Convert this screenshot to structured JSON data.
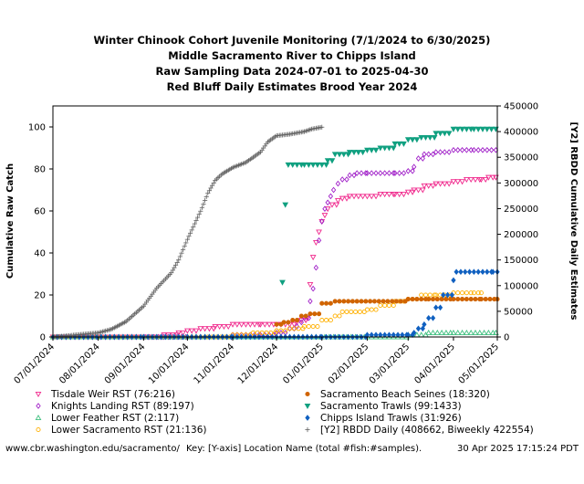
{
  "chart_data": {
    "type": "scatter",
    "title_lines": [
      "Winter Chinook Cohort Juvenile Monitoring (7/1/2024 to 6/30/2025)",
      "Middle Sacramento River to Chipps Island",
      "Raw Sampling Data 2024-07-01 to 2025-04-30",
      "Red Bluff Daily Estimates Brood Year 2024"
    ],
    "ylabel": "Cumulative Raw Catch",
    "y2label": "[Y2] RBDD Cumulative Daily Estimates",
    "xlim": [
      "2024-07-01",
      "2025-05-01"
    ],
    "x_ticks": [
      "07/01/2024",
      "08/01/2024",
      "09/01/2024",
      "10/01/2024",
      "11/01/2024",
      "12/01/2024",
      "01/01/2025",
      "02/01/2025",
      "03/01/2025",
      "04/01/2025",
      "05/01/2025"
    ],
    "ylim": [
      0,
      110
    ],
    "y_ticks": [
      "0",
      "20",
      "40",
      "60",
      "80",
      "100"
    ],
    "y2lim": [
      0,
      450000
    ],
    "y2_ticks": [
      "0",
      "50000",
      "100000",
      "150000",
      "200000",
      "250000",
      "300000",
      "350000",
      "400000",
      "450000"
    ],
    "grid": false,
    "series": [
      {
        "name": "Tisdale Weir RST (76:216)",
        "color": "#f0288c",
        "marker": "tri-down-open",
        "axis": "y",
        "points": [
          [
            "2024-07-01",
            0
          ],
          [
            "2024-08-15",
            0
          ],
          [
            "2024-09-01",
            0
          ],
          [
            "2024-09-15",
            1
          ],
          [
            "2024-09-25",
            2
          ],
          [
            "2024-10-01",
            3
          ],
          [
            "2024-10-10",
            4
          ],
          [
            "2024-10-20",
            5
          ],
          [
            "2024-11-01",
            6
          ],
          [
            "2024-11-20",
            6
          ],
          [
            "2024-12-01",
            6
          ],
          [
            "2024-12-10",
            6
          ],
          [
            "2024-12-15",
            7
          ],
          [
            "2024-12-18",
            8
          ],
          [
            "2024-12-22",
            9
          ],
          [
            "2024-12-24",
            25
          ],
          [
            "2024-12-26",
            38
          ],
          [
            "2024-12-28",
            45
          ],
          [
            "2024-12-30",
            50
          ],
          [
            "2025-01-01",
            55
          ],
          [
            "2025-01-03",
            58
          ],
          [
            "2025-01-05",
            61
          ],
          [
            "2025-01-08",
            63
          ],
          [
            "2025-01-12",
            65
          ],
          [
            "2025-01-15",
            66
          ],
          [
            "2025-01-20",
            67
          ],
          [
            "2025-02-01",
            67
          ],
          [
            "2025-02-10",
            68
          ],
          [
            "2025-02-20",
            68
          ],
          [
            "2025-03-01",
            69
          ],
          [
            "2025-03-05",
            70
          ],
          [
            "2025-03-12",
            72
          ],
          [
            "2025-03-20",
            73
          ],
          [
            "2025-04-01",
            74
          ],
          [
            "2025-04-10",
            75
          ],
          [
            "2025-04-20",
            75
          ],
          [
            "2025-04-25",
            76
          ],
          [
            "2025-04-30",
            76
          ]
        ]
      },
      {
        "name": "Knights Landing RST (89:197)",
        "color": "#a020c8",
        "marker": "diamond-open",
        "axis": "y",
        "points": [
          [
            "2024-07-01",
            0
          ],
          [
            "2024-09-15",
            0
          ],
          [
            "2024-10-01",
            0
          ],
          [
            "2024-11-01",
            1
          ],
          [
            "2024-11-20",
            1
          ],
          [
            "2024-12-01",
            2
          ],
          [
            "2024-12-10",
            4
          ],
          [
            "2024-12-15",
            5
          ],
          [
            "2024-12-18",
            7
          ],
          [
            "2024-12-20",
            9
          ],
          [
            "2024-12-24",
            17
          ],
          [
            "2024-12-26",
            23
          ],
          [
            "2024-12-28",
            33
          ],
          [
            "2024-12-30",
            46
          ],
          [
            "2025-01-01",
            55
          ],
          [
            "2025-01-03",
            61
          ],
          [
            "2025-01-05",
            64
          ],
          [
            "2025-01-07",
            67
          ],
          [
            "2025-01-09",
            70
          ],
          [
            "2025-01-12",
            73
          ],
          [
            "2025-01-15",
            75
          ],
          [
            "2025-01-20",
            77
          ],
          [
            "2025-01-25",
            78
          ],
          [
            "2025-02-01",
            78
          ],
          [
            "2025-02-10",
            78
          ],
          [
            "2025-02-20",
            78
          ],
          [
            "2025-03-01",
            79
          ],
          [
            "2025-03-05",
            81
          ],
          [
            "2025-03-08",
            85
          ],
          [
            "2025-03-12",
            87
          ],
          [
            "2025-03-20",
            88
          ],
          [
            "2025-04-01",
            89
          ],
          [
            "2025-04-15",
            89
          ],
          [
            "2025-04-30",
            89
          ]
        ]
      },
      {
        "name": "Lower Feather RST (2:117)",
        "color": "#40c080",
        "marker": "tri-up-open",
        "axis": "y",
        "points": [
          [
            "2024-07-01",
            0
          ],
          [
            "2024-09-01",
            0
          ],
          [
            "2024-11-01",
            0
          ],
          [
            "2024-12-01",
            0
          ],
          [
            "2025-01-15",
            0
          ],
          [
            "2025-02-01",
            0
          ],
          [
            "2025-03-01",
            1
          ],
          [
            "2025-03-15",
            2
          ],
          [
            "2025-04-01",
            2
          ],
          [
            "2025-04-30",
            2
          ]
        ]
      },
      {
        "name": "Lower Sacramento RST (21:136)",
        "color": "#ffb000",
        "marker": "circle-open",
        "axis": "y",
        "points": [
          [
            "2024-07-01",
            0
          ],
          [
            "2024-09-01",
            0
          ],
          [
            "2024-10-15",
            0
          ],
          [
            "2024-11-01",
            1
          ],
          [
            "2024-11-15",
            2
          ],
          [
            "2024-12-01",
            3
          ],
          [
            "2024-12-10",
            4
          ],
          [
            "2024-12-20",
            5
          ],
          [
            "2025-01-01",
            8
          ],
          [
            "2025-01-10",
            10
          ],
          [
            "2025-01-15",
            12
          ],
          [
            "2025-02-01",
            13
          ],
          [
            "2025-02-10",
            15
          ],
          [
            "2025-02-20",
            17
          ],
          [
            "2025-03-01",
            18
          ],
          [
            "2025-03-10",
            20
          ],
          [
            "2025-03-20",
            20
          ],
          [
            "2025-04-01",
            21
          ],
          [
            "2025-04-15",
            21
          ],
          [
            "2025-04-20",
            21
          ]
        ]
      },
      {
        "name": "Sacramento Beach Seines (18:320)",
        "color": "#d06400",
        "marker": "circle-filled",
        "axis": "y",
        "points": [
          [
            "2024-12-01",
            6
          ],
          [
            "2024-12-06",
            7
          ],
          [
            "2024-12-12",
            8
          ],
          [
            "2024-12-18",
            10
          ],
          [
            "2024-12-24",
            11
          ],
          [
            "2025-01-01",
            16
          ],
          [
            "2025-01-10",
            17
          ],
          [
            "2025-01-25",
            17
          ],
          [
            "2025-02-15",
            17
          ],
          [
            "2025-03-01",
            18
          ],
          [
            "2025-03-15",
            18
          ],
          [
            "2025-04-01",
            18
          ],
          [
            "2025-04-20",
            18
          ],
          [
            "2025-05-01",
            18
          ]
        ]
      },
      {
        "name": "Sacramento Trawls (99:1433)",
        "color": "#10a080",
        "marker": "tri-down-filled",
        "axis": "y",
        "points": [
          [
            "2024-12-05",
            26
          ],
          [
            "2024-12-07",
            63
          ],
          [
            "2024-12-09",
            82
          ],
          [
            "2024-12-20",
            82
          ],
          [
            "2025-01-01",
            82
          ],
          [
            "2025-01-05",
            84
          ],
          [
            "2025-01-10",
            87
          ],
          [
            "2025-01-20",
            88
          ],
          [
            "2025-02-01",
            89
          ],
          [
            "2025-02-10",
            90
          ],
          [
            "2025-02-20",
            92
          ],
          [
            "2025-03-01",
            94
          ],
          [
            "2025-03-10",
            95
          ],
          [
            "2025-03-20",
            97
          ],
          [
            "2025-04-01",
            99
          ],
          [
            "2025-04-15",
            99
          ],
          [
            "2025-04-30",
            99
          ]
        ]
      },
      {
        "name": "Chipps Island Trawls (31:926)",
        "color": "#1060c0",
        "marker": "diamond-filled",
        "axis": "y",
        "points": [
          [
            "2024-07-01",
            0
          ],
          [
            "2024-09-01",
            0
          ],
          [
            "2024-11-01",
            0
          ],
          [
            "2025-01-01",
            0
          ],
          [
            "2025-02-01",
            1
          ],
          [
            "2025-03-01",
            1
          ],
          [
            "2025-03-05",
            2
          ],
          [
            "2025-03-08",
            4
          ],
          [
            "2025-03-12",
            6
          ],
          [
            "2025-03-15",
            9
          ],
          [
            "2025-03-20",
            14
          ],
          [
            "2025-03-25",
            20
          ],
          [
            "2025-04-01",
            27
          ],
          [
            "2025-04-03",
            31
          ],
          [
            "2025-04-28",
            31
          ],
          [
            "2025-05-01",
            31
          ]
        ]
      },
      {
        "name": "[Y2] RBDD Daily (408662, Biweekly 422554)",
        "color": "#606060",
        "marker": "plus",
        "axis": "y2",
        "points": [
          [
            "2024-07-01",
            0
          ],
          [
            "2024-07-10",
            2000
          ],
          [
            "2024-07-20",
            5000
          ],
          [
            "2024-08-01",
            8000
          ],
          [
            "2024-08-10",
            15000
          ],
          [
            "2024-08-20",
            30000
          ],
          [
            "2024-09-01",
            60000
          ],
          [
            "2024-09-10",
            95000
          ],
          [
            "2024-09-20",
            125000
          ],
          [
            "2024-09-25",
            150000
          ],
          [
            "2024-10-01",
            190000
          ],
          [
            "2024-10-10",
            245000
          ],
          [
            "2024-10-15",
            280000
          ],
          [
            "2024-10-20",
            305000
          ],
          [
            "2024-10-25",
            318000
          ],
          [
            "2024-11-01",
            330000
          ],
          [
            "2024-11-10",
            340000
          ],
          [
            "2024-11-20",
            360000
          ],
          [
            "2024-11-25",
            380000
          ],
          [
            "2024-12-01",
            392000
          ],
          [
            "2024-12-10",
            395000
          ],
          [
            "2024-12-20",
            400000
          ],
          [
            "2024-12-25",
            405000
          ],
          [
            "2025-01-01",
            408662
          ]
        ]
      }
    ],
    "legend_placement": "below"
  },
  "footer": {
    "url": "www.cbr.washington.edu/sacramento/",
    "key": "Key: [Y-axis] Location Name (total #fish:#samples).",
    "timestamp": "30 Apr 2025 17:15:24 PDT"
  }
}
